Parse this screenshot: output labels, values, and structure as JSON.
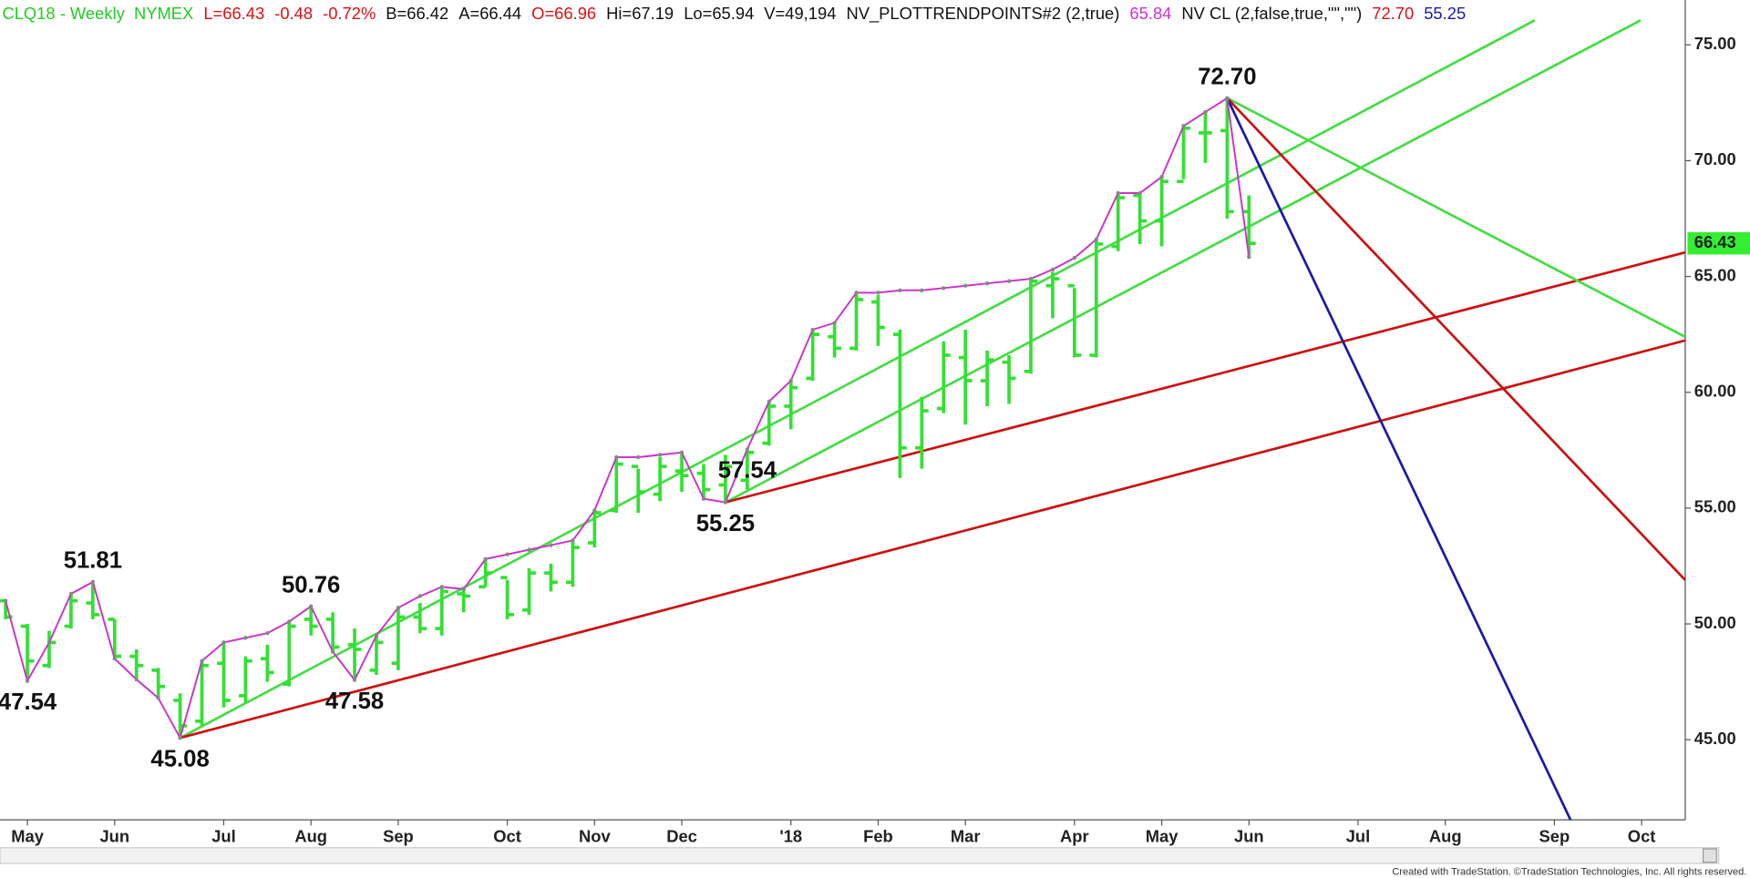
{
  "chart_data": {
    "type": "ohlc",
    "header": [
      {
        "text": "CLQ18 - Weekly  NYMEX",
        "color": "#22cc22"
      },
      {
        "text": "L=66.43",
        "color": "#dd1111"
      },
      {
        "text": "-0.48",
        "color": "#dd1111"
      },
      {
        "text": "-0.72%",
        "color": "#dd1111"
      },
      {
        "text": "B=66.42",
        "color": "#111111"
      },
      {
        "text": "A=66.44",
        "color": "#111111"
      },
      {
        "text": "O=66.96",
        "color": "#dd1111"
      },
      {
        "text": "Hi=67.19",
        "color": "#111111"
      },
      {
        "text": "Lo=65.94",
        "color": "#111111"
      },
      {
        "text": "V=49,194",
        "color": "#111111"
      },
      {
        "text": "NV_PLOTTRENDPOINTS#2 (2,true)",
        "color": "#111111"
      },
      {
        "text": "65.84",
        "color": "#cc33cc"
      },
      {
        "text": "NV CL (2,false,true,\"\",\"\")",
        "color": "#111111"
      },
      {
        "text": "72.70",
        "color": "#dd1111"
      },
      {
        "text": "55.25",
        "color": "#1a1aaa"
      }
    ],
    "categories": [
      null,
      "May",
      null,
      null,
      null,
      "Jun",
      null,
      null,
      null,
      null,
      "Jul",
      null,
      null,
      null,
      "Aug",
      null,
      null,
      null,
      "Sep",
      null,
      null,
      null,
      null,
      "Oct",
      null,
      null,
      null,
      "Nov",
      null,
      null,
      null,
      "Dec",
      null,
      null,
      null,
      null,
      "'18",
      null,
      null,
      null,
      "Feb",
      null,
      null,
      null,
      "Mar",
      null,
      null,
      null,
      null,
      "Apr",
      null,
      null,
      null,
      "May",
      null,
      null,
      null,
      "Jun",
      null,
      null,
      null,
      null,
      "Jul",
      null,
      null,
      null,
      "Aug",
      null,
      null,
      null,
      null,
      "Sep",
      null,
      null,
      null,
      "Oct",
      null
    ],
    "ohlc": {
      "color": "#33e033",
      "open": [
        51.0,
        49.9,
        48.2,
        49.9,
        50.9,
        50.2,
        48.6,
        48.0,
        46.7,
        45.8,
        48.3,
        46.9,
        48.5,
        47.4,
        50.2,
        50.2,
        49.1,
        48.0,
        48.3,
        50.3,
        49.8,
        51.3,
        51.6,
        52.0,
        50.6,
        52.2,
        51.8,
        53.5,
        54.9,
        56.8,
        55.6,
        56.6,
        56.5,
        56.0,
        56.2,
        57.8,
        59.4,
        60.6,
        62.4,
        61.9,
        63.9,
        62.5,
        57.6,
        59.3,
        61.5,
        60.5,
        61.3,
        60.9,
        64.6,
        64.6,
        61.6,
        66.3,
        68.5,
        67.4,
        69.1,
        71.2,
        71.3,
        67.8,
        null,
        null,
        null,
        null,
        null,
        null,
        null,
        null,
        null,
        null,
        null,
        null,
        null,
        null,
        null,
        null,
        null,
        null,
        null
      ],
      "high": [
        51.0,
        50.0,
        49.7,
        51.3,
        51.81,
        50.2,
        48.9,
        48.1,
        47.0,
        48.4,
        49.2,
        48.6,
        49.1,
        50.1,
        50.76,
        50.5,
        49.8,
        49.5,
        50.7,
        50.9,
        51.6,
        51.5,
        52.8,
        51.9,
        52.4,
        52.6,
        53.6,
        54.9,
        57.2,
        56.7,
        57.2,
        57.4,
        56.9,
        57.3,
        57.54,
        59.6,
        60.5,
        62.7,
        63.0,
        64.3,
        64.2,
        62.7,
        59.8,
        62.2,
        62.7,
        61.8,
        61.6,
        64.9,
        65.2,
        64.5,
        66.6,
        68.6,
        68.6,
        69.3,
        71.5,
        72.1,
        72.7,
        68.5,
        null,
        null,
        null,
        null,
        null,
        null,
        null,
        null,
        null,
        null,
        null,
        null,
        null,
        null,
        null,
        null,
        null,
        null,
        null
      ],
      "low": [
        50.2,
        47.54,
        48.1,
        49.8,
        50.2,
        48.5,
        47.6,
        46.8,
        45.08,
        45.6,
        46.4,
        46.6,
        47.5,
        47.3,
        49.5,
        48.8,
        47.58,
        47.8,
        48.0,
        49.6,
        49.5,
        50.5,
        51.6,
        50.2,
        50.4,
        51.4,
        51.6,
        53.3,
        54.8,
        54.8,
        55.3,
        55.7,
        55.4,
        55.25,
        55.8,
        57.7,
        58.4,
        60.5,
        61.5,
        61.8,
        62.0,
        56.3,
        56.7,
        59.1,
        58.6,
        59.4,
        59.5,
        60.8,
        63.2,
        61.5,
        61.5,
        66.1,
        66.4,
        66.3,
        69.2,
        69.9,
        67.5,
        65.84,
        null,
        null,
        null,
        null,
        null,
        null,
        null,
        null,
        null,
        null,
        null,
        null,
        null,
        null,
        null,
        null,
        null,
        null,
        null
      ],
      "close": [
        50.3,
        48.4,
        49.2,
        51.0,
        50.4,
        48.6,
        48.2,
        47.3,
        45.6,
        48.2,
        46.7,
        48.4,
        47.9,
        49.9,
        49.9,
        49.0,
        48.9,
        49.2,
        50.3,
        49.8,
        51.4,
        51.2,
        52.2,
        50.4,
        52.2,
        51.8,
        53.3,
        54.8,
        56.9,
        55.7,
        56.8,
        56.4,
        55.8,
        56.8,
        57.4,
        59.4,
        60.2,
        62.5,
        61.9,
        64.0,
        62.8,
        57.6,
        59.2,
        61.6,
        60.5,
        61.4,
        60.6,
        64.8,
        64.9,
        61.6,
        66.4,
        68.4,
        67.4,
        69.1,
        71.4,
        71.2,
        67.8,
        66.43,
        null,
        null,
        null,
        null,
        null,
        null,
        null,
        null,
        null,
        null,
        null,
        null,
        null,
        null,
        null,
        null,
        null,
        null,
        null
      ]
    },
    "trend": {
      "color": "#cc33cc",
      "values": [
        51.0,
        47.54,
        49.2,
        51.3,
        51.81,
        48.5,
        47.6,
        46.8,
        45.08,
        48.4,
        49.2,
        49.4,
        49.6,
        50.1,
        50.76,
        48.8,
        47.58,
        49.5,
        50.7,
        51.2,
        51.6,
        51.5,
        52.8,
        53.0,
        53.2,
        53.4,
        53.6,
        54.9,
        57.2,
        57.2,
        57.3,
        57.4,
        55.4,
        55.25,
        57.54,
        59.6,
        60.5,
        62.7,
        63.0,
        64.3,
        64.3,
        64.4,
        64.4,
        64.5,
        64.6,
        64.7,
        64.8,
        64.9,
        65.3,
        65.8,
        66.6,
        68.6,
        68.6,
        69.3,
        71.5,
        72.1,
        72.7,
        65.84,
        null,
        null,
        null,
        null,
        null,
        null,
        null,
        null,
        null,
        null,
        null,
        null,
        null,
        null,
        null,
        null,
        null,
        null,
        null
      ],
      "value_labels": [
        null,
        "47.54",
        null,
        null,
        "51.81",
        null,
        null,
        null,
        "45.08",
        null,
        null,
        null,
        null,
        null,
        "50.76",
        null,
        "47.58",
        null,
        null,
        null,
        null,
        null,
        null,
        null,
        null,
        null,
        null,
        null,
        null,
        null,
        null,
        null,
        null,
        "55.25",
        "57.54",
        null,
        null,
        null,
        null,
        null,
        null,
        null,
        null,
        null,
        null,
        null,
        null,
        null,
        null,
        null,
        null,
        null,
        null,
        null,
        null,
        null,
        "72.70",
        null,
        null,
        null,
        null,
        null,
        null,
        null,
        null,
        null,
        null,
        null,
        null,
        null,
        null,
        null,
        null,
        null,
        null,
        null,
        null
      ]
    },
    "trendlines": [
      {
        "color": "#44dd44",
        "points": [
          [
            8,
            45.08
          ],
          [
            70.1,
            76.06
          ]
        ]
      },
      {
        "color": "#44dd44",
        "points": [
          [
            33,
            55.25
          ],
          [
            74.95,
            76.06
          ]
        ]
      },
      {
        "color": "#cc1111",
        "points": [
          [
            8,
            45.08
          ],
          [
            77,
            62.24
          ]
        ]
      },
      {
        "color": "#cc1111",
        "points": [
          [
            33,
            55.25
          ],
          [
            77,
            66.04
          ]
        ]
      },
      {
        "color": "#44dd44",
        "points": [
          [
            56,
            72.7
          ],
          [
            77,
            62.39
          ]
        ]
      },
      {
        "color": "#cc1111",
        "points": [
          [
            56,
            72.7
          ],
          [
            77,
            51.89
          ]
        ]
      },
      {
        "color": "#1a1aaa",
        "points": [
          [
            56,
            72.7
          ],
          [
            71.74,
            41.54
          ]
        ]
      }
    ],
    "last_price": {
      "value": 66.43,
      "label": "66.43",
      "color": "#33ee33"
    },
    "ylim": [
      41.54,
      76.93
    ],
    "yticks": [
      {
        "value": 45,
        "label": "45.00"
      },
      {
        "value": 50,
        "label": "50.00"
      },
      {
        "value": 55,
        "label": "55.00"
      },
      {
        "value": 60,
        "label": "60.00"
      },
      {
        "value": 65,
        "label": "65.00"
      },
      {
        "value": 70,
        "label": "70.00"
      },
      {
        "value": 75,
        "label": "75.00"
      }
    ],
    "footer": "Created with TradeStation. ©TradeStation Technologies, Inc. All rights reserved."
  }
}
